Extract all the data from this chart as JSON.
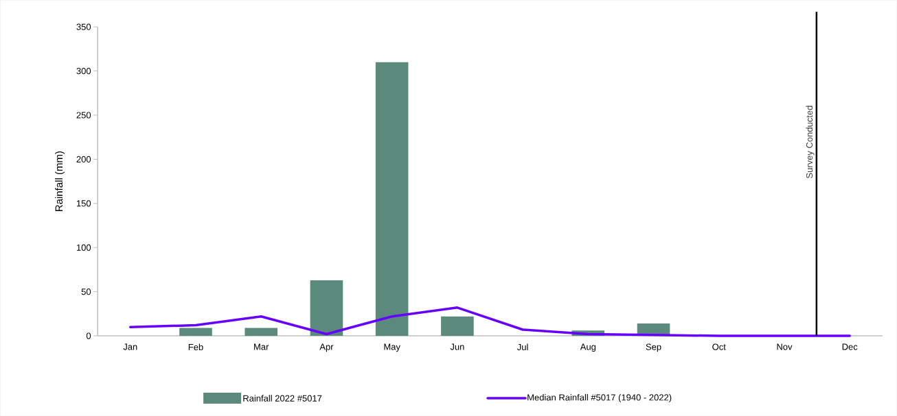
{
  "chart_data": {
    "type": "bar",
    "ylabel": "Rainfall (mm)",
    "categories": [
      "Jan",
      "Feb",
      "Mar",
      "Apr",
      "May",
      "Jun",
      "Jul",
      "Aug",
      "Sep",
      "Oct",
      "Nov",
      "Dec"
    ],
    "series": [
      {
        "name": "Rainfall 2022 #5017",
        "color": "#5b8a7d",
        "values": [
          0,
          9,
          9,
          63,
          310,
          22,
          0,
          6,
          14,
          0,
          0,
          0
        ]
      },
      {
        "name": "Median Rainfall #5017 (1940 - 2022)",
        "type": "line",
        "color": "#6600ff",
        "values": [
          10,
          12,
          22,
          2,
          22,
          32,
          7,
          2,
          1,
          0,
          0,
          0
        ]
      }
    ],
    "ylim": [
      0,
      350
    ],
    "yticks": [
      0,
      50,
      100,
      150,
      200,
      250,
      300,
      350
    ],
    "annotations": [
      "Survey Conducted"
    ],
    "grid": false,
    "legend": "bottom"
  }
}
